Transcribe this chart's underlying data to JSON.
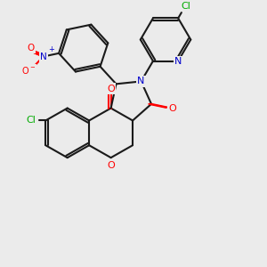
{
  "bg_color": "#ebebeb",
  "bond_color": "#1a1a1a",
  "line_width": 1.5,
  "colors": {
    "O": "#ff0000",
    "N": "#0000cc",
    "Cl": "#00aa00"
  }
}
